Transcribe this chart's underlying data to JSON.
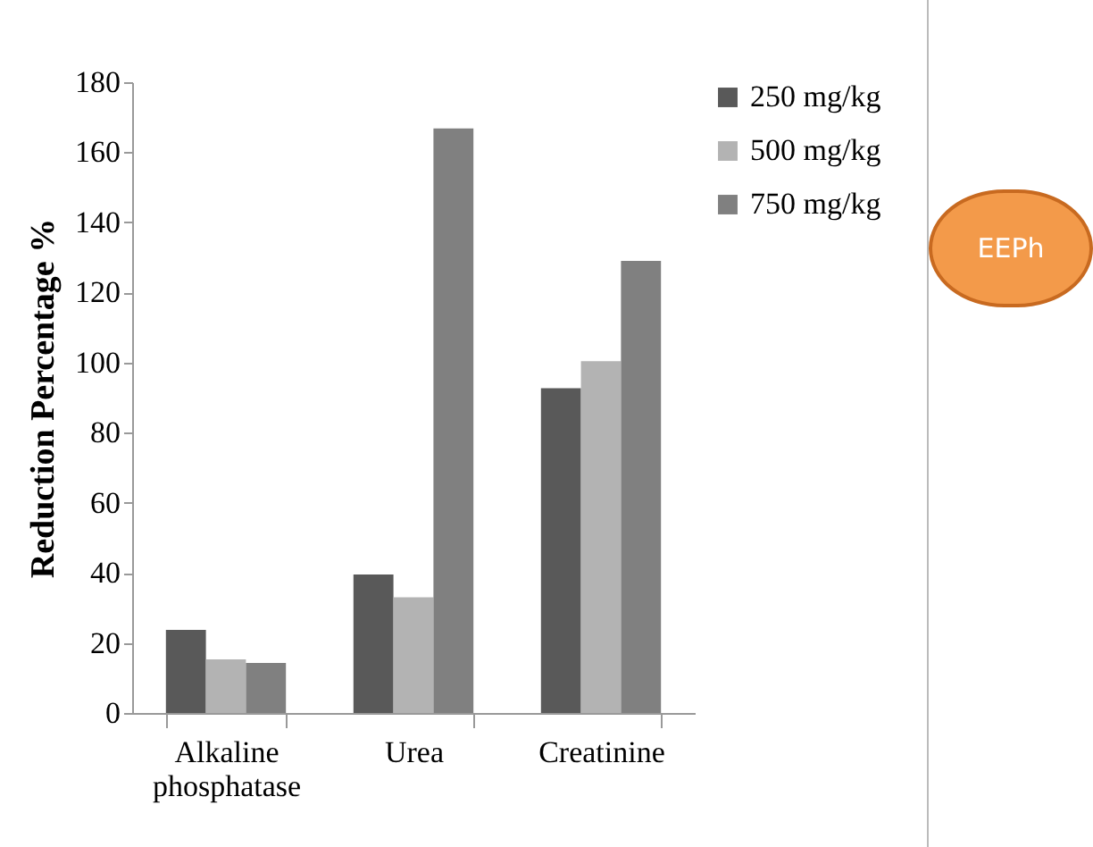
{
  "chart_data": {
    "type": "bar",
    "ylabel": "Reduction  Percentage %",
    "categories": [
      "Alkaline phosphatase",
      "Urea",
      "Creatinine"
    ],
    "series": [
      {
        "name": "250 mg/kg",
        "color": "#595959",
        "values": [
          23.7,
          39.5,
          92.7
        ]
      },
      {
        "name": "500 mg/kg",
        "color": "#b3b3b3",
        "values": [
          15.3,
          33,
          100.4
        ]
      },
      {
        "name": "750 mg/kg",
        "color": "#808080",
        "values": [
          14.3,
          166.8,
          129
        ]
      }
    ],
    "ylim": [
      0,
      180
    ],
    "yticks": [
      0,
      20,
      40,
      60,
      80,
      100,
      120,
      140,
      160,
      180
    ],
    "grid": false,
    "legend": "right",
    "annotations": [
      "EEPh"
    ]
  }
}
